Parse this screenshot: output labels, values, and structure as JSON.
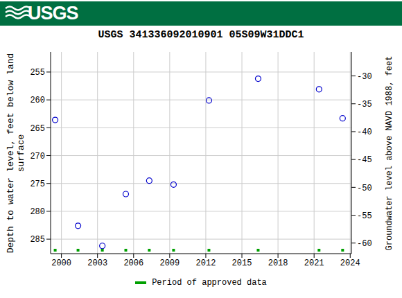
{
  "chart_data": {
    "type": "scatter",
    "header": "USGS",
    "title": "USGS 341336092010901 05S09W31DDC1",
    "x_label": null,
    "y_label": "Depth to water level, feet below land surface",
    "y2_label": "Groundwater level above NAVD 1988, feet",
    "x": [
      1999.48,
      2001.38,
      2003.4,
      2005.35,
      2007.3,
      2009.32,
      2012.26,
      2016.35,
      2021.41,
      2023.37
    ],
    "color": "#0000cc",
    "marker": "circle",
    "series": [
      {
        "name": "Period of approved data",
        "color": "#00a000",
        "marker": "square",
        "values": [
          263.6,
          282.6,
          286.2,
          276.9,
          274.5,
          275.2,
          260.1,
          256.2,
          258.1,
          263.3
        ]
      }
    ],
    "xlim": [
      1999.1,
      2024.1
    ],
    "xticks": [
      2000,
      2003,
      2006,
      2009,
      2012,
      2015,
      2018,
      2021,
      2024
    ],
    "ylim": [
      251.4,
      287.6
    ],
    "yticks": [
      255,
      260,
      265,
      270,
      275,
      280,
      285
    ],
    "y2lim": [
      -61.9,
      -25.7
    ],
    "y2ticks": [
      -60,
      -55,
      -50,
      -45,
      -40,
      -35,
      -30
    ],
    "grid": true,
    "legend": "bottom"
  }
}
